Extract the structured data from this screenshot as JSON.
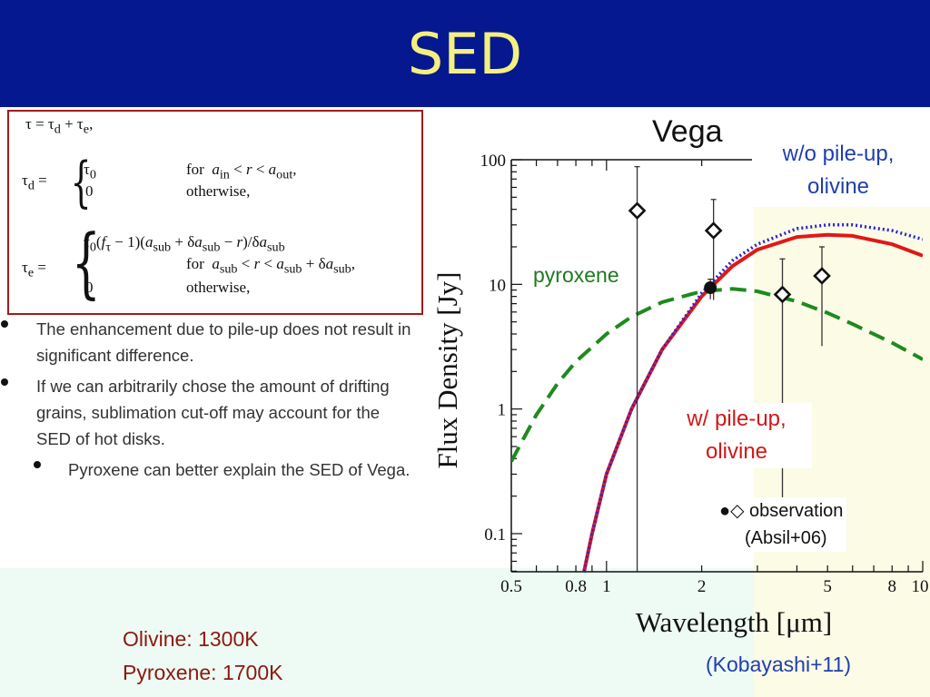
{
  "slide": {
    "title": "SED"
  },
  "equations": {
    "tau": "τ = τ<sub>d</sub> + τ<sub>e</sub>,",
    "tau_d_lhs": "τ<sub>d</sub> =",
    "tau_d_case1": "τ<sub>0</sub>",
    "tau_d_cond1": "for&nbsp;&nbsp;<i>a</i><sub>in</sub> &lt; <i>r</i> &lt; <i>a</i><sub>out</sub>,",
    "tau_d_case2": "0",
    "tau_d_cond2": "otherwise,",
    "tau_e_lhs": "τ<sub>e</sub> =",
    "tau_e_case1": "τ<sub>0</sub>(<i>f</i><sub>τ</sub> − 1)(<i>a</i><sub>sub</sub> + δ<i>a</i><sub>sub</sub> − <i>r</i>)/δ<i>a</i><sub>sub</sub>",
    "tau_e_cond1": "for&nbsp;&nbsp;<i>a</i><sub>sub</sub> &lt; <i>r</i> &lt; <i>a</i><sub>sub</sub> + δ<i>a</i><sub>sub</sub>,",
    "tau_e_case2": "0",
    "tau_e_cond2": "otherwise,"
  },
  "bullets": [
    "The enhancement due to pile-up does not result in significant difference.",
    "If we can arbitrarily chose the amount of drifting grains, sublimation cut-off may account for the SED of hot disks.",
    "Pyroxene can better explain the SED of Vega."
  ],
  "temperatures": {
    "olivine": "Olivine: 1300K",
    "pyroxene": "Pyroxene: 1700K"
  },
  "citation": "(Kobayashi+11)",
  "annotations": {
    "vega": "Vega",
    "wo_pileup_line1": "w/o pile-up,",
    "wo_pileup_line2": "olivine",
    "pyroxene": "pyroxene",
    "w_pileup_line1": "w/ pile-up,",
    "w_pileup_line2": "olivine",
    "observation_symbols": "●◇",
    "observation": "observation",
    "observation_ref": "(Absil+06)"
  },
  "colors": {
    "header_bg": "#06188f",
    "title": "#f4f080",
    "red_curve": "#e01818",
    "blue_curve": "#2424d8",
    "green_curve": "#1e8a1e",
    "annotation_blue": "#1f3fae",
    "annotation_green": "#1e7a1e",
    "annotation_red": "#d01818"
  },
  "chart_data": {
    "type": "line",
    "xlabel": "Wavelength [μm]",
    "ylabel": "Flux Density [Jy]",
    "xscale": "log",
    "yscale": "log",
    "xlim": [
      0.5,
      10
    ],
    "ylim": [
      0.05,
      100
    ],
    "x_ticks": [
      0.5,
      0.8,
      1,
      2,
      5,
      8,
      10
    ],
    "x_tick_labels": [
      "0.5",
      "0.8",
      "1",
      "2",
      "5",
      "8",
      "10"
    ],
    "y_ticks": [
      0.1,
      1,
      10,
      100
    ],
    "y_tick_labels": [
      "0.1",
      "1",
      "10",
      "100"
    ],
    "series": [
      {
        "name": "w/ pile-up, olivine",
        "style": "solid",
        "color": "#e01818",
        "x": [
          0.85,
          0.9,
          1.0,
          1.2,
          1.5,
          2.0,
          2.5,
          3.0,
          4.0,
          5.0,
          6.0,
          8.0,
          10.0
        ],
        "y": [
          0.05,
          0.1,
          0.3,
          1.0,
          3.0,
          8.0,
          14.0,
          19.0,
          24.0,
          25.0,
          24.5,
          21.0,
          17.0
        ]
      },
      {
        "name": "w/o pile-up, olivine",
        "style": "dotted",
        "color": "#2424d8",
        "x": [
          0.85,
          0.9,
          1.0,
          1.2,
          1.5,
          2.0,
          2.5,
          3.0,
          4.0,
          5.0,
          6.0,
          8.0,
          10.0
        ],
        "y": [
          0.05,
          0.1,
          0.3,
          1.0,
          3.0,
          8.5,
          15.5,
          21.0,
          28.0,
          30.0,
          30.0,
          27.0,
          23.0
        ]
      },
      {
        "name": "pyroxene",
        "style": "dashed",
        "color": "#1e8a1e",
        "x": [
          0.5,
          0.6,
          0.7,
          0.8,
          1.0,
          1.2,
          1.5,
          2.0,
          2.5,
          3.0,
          4.0,
          5.0,
          6.0,
          8.0,
          10.0
        ],
        "y": [
          0.38,
          0.9,
          1.6,
          2.4,
          4.0,
          5.5,
          7.2,
          8.8,
          9.2,
          8.8,
          7.3,
          5.9,
          4.8,
          3.4,
          2.5
        ]
      }
    ],
    "observations": [
      {
        "x": 1.25,
        "y": 39.0,
        "y_low": 0.05,
        "y_high": 88.0,
        "marker": "diamond-open"
      },
      {
        "x": 2.18,
        "y": 27.0,
        "y_low": 7.5,
        "y_high": 48.0,
        "marker": "diamond-open"
      },
      {
        "x": 2.13,
        "y": 9.4,
        "y_low": 7.6,
        "y_high": 11.0,
        "marker": "circle-filled"
      },
      {
        "x": 3.6,
        "y": 8.3,
        "y_low": 0.15,
        "y_high": 16.0,
        "marker": "diamond-open"
      },
      {
        "x": 4.8,
        "y": 11.7,
        "y_low": 3.2,
        "y_high": 20.0,
        "marker": "diamond-open"
      }
    ]
  }
}
